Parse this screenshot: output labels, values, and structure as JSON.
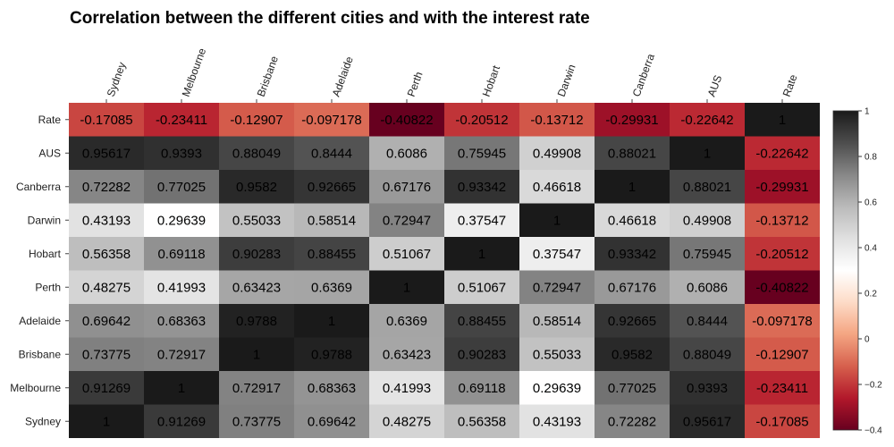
{
  "chart_data": {
    "type": "heatmap",
    "title": "Correlation between the different cities and with the interest rate",
    "columns": [
      "Sydney",
      "Melbourne",
      "Brisbane",
      "Adelaide",
      "Perth",
      "Hobart",
      "Darwin",
      "Canberra",
      "AUS",
      "Rate"
    ],
    "rows": [
      "Rate",
      "AUS",
      "Canberra",
      "Darwin",
      "Hobart",
      "Perth",
      "Adelaide",
      "Brisbane",
      "Melbourne",
      "Sydney"
    ],
    "values": [
      [
        "-0.17085",
        "-0.23411",
        "-0.12907",
        "-0.097178",
        "-0.40822",
        "-0.20512",
        "-0.13712",
        "-0.29931",
        "-0.22642",
        "1"
      ],
      [
        "0.95617",
        "0.9393",
        "0.88049",
        "0.8444",
        "0.6086",
        "0.75945",
        "0.49908",
        "0.88021",
        "1",
        "-0.22642"
      ],
      [
        "0.72282",
        "0.77025",
        "0.9582",
        "0.92665",
        "0.67176",
        "0.93342",
        "0.46618",
        "1",
        "0.88021",
        "-0.29931"
      ],
      [
        "0.43193",
        "0.29639",
        "0.55033",
        "0.58514",
        "0.72947",
        "0.37547",
        "1",
        "0.46618",
        "0.49908",
        "-0.13712"
      ],
      [
        "0.56358",
        "0.69118",
        "0.90283",
        "0.88455",
        "0.51067",
        "1",
        "0.37547",
        "0.93342",
        "0.75945",
        "-0.20512"
      ],
      [
        "0.48275",
        "0.41993",
        "0.63423",
        "0.6369",
        "1",
        "0.51067",
        "0.72947",
        "0.67176",
        "0.6086",
        "-0.40822"
      ],
      [
        "0.69642",
        "0.68363",
        "0.9788",
        "1",
        "0.6369",
        "0.88455",
        "0.58514",
        "0.92665",
        "0.8444",
        "-0.097178"
      ],
      [
        "0.73775",
        "0.72917",
        "1",
        "0.9788",
        "0.63423",
        "0.90283",
        "0.55033",
        "0.9582",
        "0.88049",
        "-0.12907"
      ],
      [
        "0.91269",
        "1",
        "0.72917",
        "0.68363",
        "0.41993",
        "0.69118",
        "0.29639",
        "0.77025",
        "0.9393",
        "-0.23411"
      ],
      [
        "1",
        "0.91269",
        "0.73775",
        "0.69642",
        "0.48275",
        "0.56358",
        "0.43193",
        "0.72282",
        "0.95617",
        "-0.17085"
      ]
    ],
    "colorbar": {
      "range": [
        -0.4,
        1
      ],
      "ticks": [
        "1",
        "0.8",
        "0.6",
        "0.4",
        "0.2",
        "0",
        "−0.2",
        "−0.4"
      ],
      "tick_values": [
        1,
        0.8,
        0.6,
        0.4,
        0.2,
        0,
        -0.2,
        -0.4
      ],
      "colors": {
        "negative_end": "#67001f",
        "mid": "#ffffff",
        "positive_end": "#1a1a1a"
      }
    },
    "legend": "colorbar-right"
  }
}
